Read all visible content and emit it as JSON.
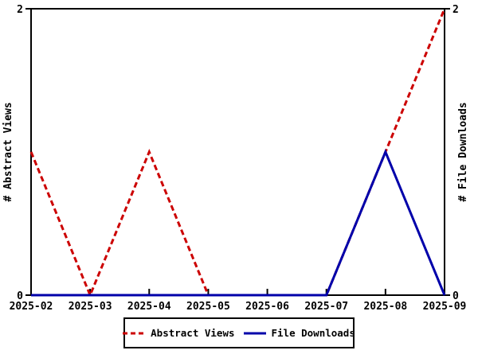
{
  "chart_data": {
    "type": "line",
    "title": "",
    "categories": [
      "2025-02",
      "2025-03",
      "2025-04",
      "2025-05",
      "2025-06",
      "2025-07",
      "2025-08",
      "2025-09"
    ],
    "series": [
      {
        "name": "Abstract Views",
        "values": [
          1,
          0,
          1,
          0,
          0,
          0,
          1,
          2
        ],
        "color": "#cc0000",
        "style": "dashed",
        "axis": "left"
      },
      {
        "name": "File Downloads",
        "values": [
          0,
          0,
          0,
          0,
          0,
          0,
          1,
          0
        ],
        "color": "#0000aa",
        "style": "solid",
        "axis": "right"
      }
    ],
    "y_left_label": "# Abstract Views",
    "y_right_label": "# File Downloads",
    "ylim": [
      0,
      2
    ],
    "y_ticks": [
      0,
      2
    ],
    "xlabel": "",
    "grid": false,
    "legend_position": "bottom-center"
  },
  "colors": {
    "background": "#ffffff",
    "axis": "#000000",
    "text": "#000000",
    "abstract_views": "#cc0000",
    "file_downloads": "#0000aa"
  }
}
